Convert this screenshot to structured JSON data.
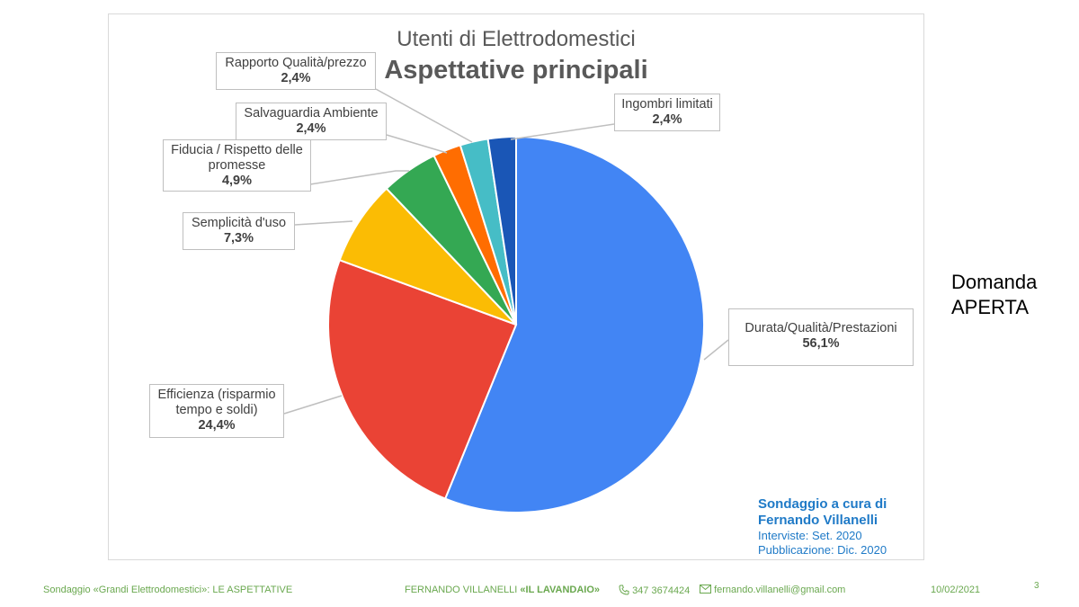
{
  "chart_data": {
    "type": "pie",
    "title": "Utenti di Elettrodomestici",
    "subtitle": "Aspettative principali",
    "slices": [
      {
        "label": "Durata/Qualità/Prestazioni",
        "value": 56.1,
        "display": "56,1%",
        "color": "#4285f4"
      },
      {
        "label": "Efficienza (risparmio tempo e soldi)",
        "value": 24.4,
        "display": "24,4%",
        "color": "#ea4335"
      },
      {
        "label": "Semplicità d'uso",
        "value": 7.3,
        "display": "7,3%",
        "color": "#fbbc04"
      },
      {
        "label": "Fiducia / Rispetto delle promesse",
        "value": 4.9,
        "display": "4,9%",
        "color": "#34a853"
      },
      {
        "label": "Salvaguardia Ambiente",
        "value": 2.4,
        "display": "2,4%",
        "color": "#ff6d01"
      },
      {
        "label": "Rapporto Qualità/prezzo",
        "value": 2.4,
        "display": "2,4%",
        "color": "#46bdc6"
      },
      {
        "label": "Ingombri limitati",
        "value": 2.4,
        "display": "2,4%",
        "color": "#1a56b6"
      }
    ]
  },
  "labels": {
    "durata": {
      "l1": "Durata/Qualità/Prestazioni",
      "pct": "56,1%"
    },
    "efficienza": {
      "l1": "Efficienza (risparmio",
      "l2": "tempo e soldi)",
      "pct": "24,4%"
    },
    "semplicita": {
      "l1": "Semplicità d'uso",
      "pct": "7,3%"
    },
    "fiducia": {
      "l1": "Fiducia / Rispetto delle",
      "l2": "promesse",
      "pct": "4,9%"
    },
    "ambiente": {
      "l1": "Salvaguardia Ambiente",
      "pct": "2,4%"
    },
    "rapporto": {
      "l1": "Rapporto Qualità/prezzo",
      "pct": "2,4%"
    },
    "ingombri": {
      "l1": "Ingombri limitati",
      "pct": "2,4%"
    }
  },
  "credit": {
    "line1": "Sondaggio a cura di",
    "line2": "Fernando Villanelli",
    "line3": "Interviste: Set. 2020",
    "line4": "Pubblicazione: Dic. 2020"
  },
  "side_note": {
    "line1": "Domanda",
    "line2": "APERTA"
  },
  "footer": {
    "left": "Sondaggio «Grandi Elettrodomestici»:   LE ASPETTATIVE",
    "author": "FERNANDO VILLANELLI",
    "brand": "«IL LAVANDAIO»",
    "phone": "347 3674424",
    "email": "fernando.villanelli@gmail.com",
    "date": "10/02/2021",
    "page": "3"
  },
  "icons": {
    "phone": "phone-icon",
    "email": "email-icon"
  }
}
